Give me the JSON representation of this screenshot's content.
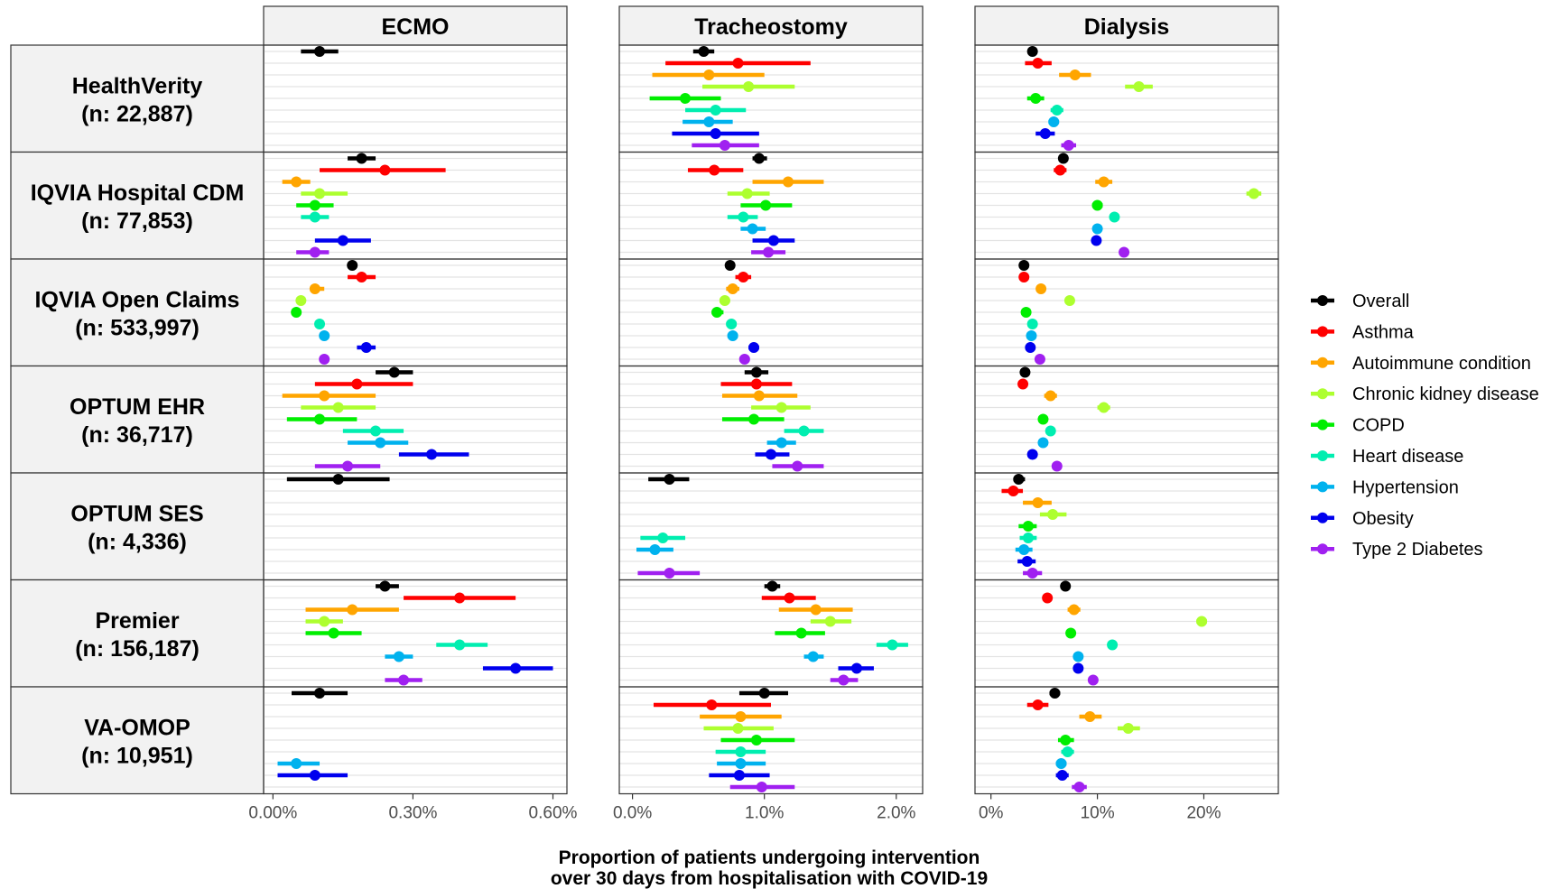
{
  "chart_data": {
    "type": "scatter",
    "subtype": "forest plot (point estimate with confidence interval)",
    "xlabel_lines": [
      "Proportion of patients undergoing intervention",
      "over 30 days from hospitalisation with COVID-19"
    ],
    "ylabel": "",
    "grid": true,
    "legend_position": "right",
    "databases": [
      {
        "name": "HealthVerity",
        "n_label": "(n: 22,887)"
      },
      {
        "name": "IQVIA Hospital CDM",
        "n_label": "(n: 77,853)"
      },
      {
        "name": "IQVIA Open Claims",
        "n_label": "(n: 533,997)"
      },
      {
        "name": "OPTUM EHR",
        "n_label": "(n: 36,717)"
      },
      {
        "name": "OPTUM SES",
        "n_label": "(n: 4,336)"
      },
      {
        "name": "Premier",
        "n_label": "(n: 156,187)"
      },
      {
        "name": "VA-OMOP",
        "n_label": "(n: 10,951)"
      }
    ],
    "series": [
      {
        "name": "Overall",
        "color": "#000000"
      },
      {
        "name": "Asthma",
        "color": "#ff0000"
      },
      {
        "name": "Autoimmune condition",
        "color": "#ffa500"
      },
      {
        "name": "Chronic kidney disease",
        "color": "#adff2f"
      },
      {
        "name": "COPD",
        "color": "#00ee00"
      },
      {
        "name": "Heart disease",
        "color": "#00eeb0"
      },
      {
        "name": "Hypertension",
        "color": "#00b2ee"
      },
      {
        "name": "Obesity",
        "color": "#0000ee"
      },
      {
        "name": "Type 2 Diabetes",
        "color": "#a020f0"
      }
    ],
    "panels": [
      {
        "title": "ECMO",
        "unit": "percent",
        "xlim": [
          -0.02,
          0.63
        ],
        "ticks": [
          0,
          0.3,
          0.6
        ],
        "tick_labels": [
          "0.00%",
          "0.30%",
          "0.60%"
        ],
        "values": [
          [
            [
              0.1,
              0.06,
              0.14
            ],
            null,
            null,
            null,
            null,
            null,
            null,
            null,
            null
          ],
          [
            [
              0.19,
              0.16,
              0.22
            ],
            [
              0.24,
              0.1,
              0.37
            ],
            [
              0.05,
              0.02,
              0.08
            ],
            [
              0.1,
              0.06,
              0.16
            ],
            [
              0.09,
              0.05,
              0.13
            ],
            [
              0.09,
              0.06,
              0.12
            ],
            null,
            [
              0.15,
              0.09,
              0.21
            ],
            [
              0.09,
              0.05,
              0.12
            ]
          ],
          [
            [
              0.17,
              0.16,
              0.18
            ],
            [
              0.19,
              0.16,
              0.22
            ],
            [
              0.09,
              0.08,
              0.11
            ],
            [
              0.06,
              0.05,
              0.07
            ],
            [
              0.05,
              0.04,
              0.06
            ],
            [
              0.1,
              0.09,
              0.11
            ],
            [
              0.11,
              0.1,
              0.12
            ],
            [
              0.2,
              0.18,
              0.22
            ],
            [
              0.11,
              0.1,
              0.12
            ]
          ],
          [
            [
              0.26,
              0.22,
              0.3
            ],
            [
              0.18,
              0.09,
              0.3
            ],
            [
              0.11,
              0.02,
              0.22
            ],
            [
              0.14,
              0.06,
              0.22
            ],
            [
              0.1,
              0.03,
              0.18
            ],
            [
              0.22,
              0.15,
              0.28
            ],
            [
              0.23,
              0.16,
              0.29
            ],
            [
              0.34,
              0.27,
              0.42
            ],
            [
              0.16,
              0.09,
              0.23
            ]
          ],
          [
            [
              0.14,
              0.03,
              0.25
            ],
            null,
            null,
            null,
            null,
            null,
            null,
            null,
            null
          ],
          [
            [
              0.24,
              0.22,
              0.27
            ],
            [
              0.4,
              0.28,
              0.52
            ],
            [
              0.17,
              0.07,
              0.27
            ],
            [
              0.11,
              0.07,
              0.15
            ],
            [
              0.13,
              0.07,
              0.19
            ],
            [
              0.4,
              0.35,
              0.46
            ],
            [
              0.27,
              0.24,
              0.3
            ],
            [
              0.52,
              0.45,
              0.6
            ],
            [
              0.28,
              0.24,
              0.32
            ]
          ],
          [
            [
              0.1,
              0.04,
              0.16
            ],
            null,
            null,
            null,
            null,
            null,
            [
              0.05,
              0.01,
              0.1
            ],
            [
              0.09,
              0.01,
              0.16
            ],
            null
          ]
        ]
      },
      {
        "title": "Tracheostomy",
        "unit": "percent",
        "xlim": [
          -0.1,
          2.2
        ],
        "ticks": [
          0,
          1,
          2
        ],
        "tick_labels": [
          "0.0%",
          "1.0%",
          "2.0%"
        ],
        "values": [
          [
            [
              0.54,
              0.46,
              0.62
            ],
            [
              0.8,
              0.25,
              1.35
            ],
            [
              0.58,
              0.15,
              1.0
            ],
            [
              0.88,
              0.53,
              1.23
            ],
            [
              0.4,
              0.13,
              0.67
            ],
            [
              0.63,
              0.4,
              0.86
            ],
            [
              0.58,
              0.38,
              0.76
            ],
            [
              0.63,
              0.3,
              0.96
            ],
            [
              0.7,
              0.45,
              0.96
            ]
          ],
          [
            [
              0.96,
              0.91,
              1.02
            ],
            [
              0.62,
              0.42,
              0.84
            ],
            [
              1.18,
              0.91,
              1.45
            ],
            [
              0.87,
              0.72,
              1.04
            ],
            [
              1.01,
              0.82,
              1.21
            ],
            [
              0.84,
              0.72,
              0.95
            ],
            [
              0.91,
              0.82,
              1.01
            ],
            [
              1.07,
              0.91,
              1.23
            ],
            [
              1.03,
              0.9,
              1.16
            ]
          ],
          [
            [
              0.74,
              0.71,
              0.77
            ],
            [
              0.84,
              0.78,
              0.9
            ],
            [
              0.76,
              0.71,
              0.81
            ],
            [
              0.7,
              0.66,
              0.74
            ],
            [
              0.64,
              0.6,
              0.69
            ],
            [
              0.75,
              0.71,
              0.79
            ],
            [
              0.76,
              0.72,
              0.8
            ],
            [
              0.92,
              0.88,
              0.96
            ],
            [
              0.85,
              0.81,
              0.89
            ]
          ],
          [
            [
              0.94,
              0.85,
              1.03
            ],
            [
              0.94,
              0.67,
              1.21
            ],
            [
              0.96,
              0.68,
              1.25
            ],
            [
              1.13,
              0.9,
              1.35
            ],
            [
              0.92,
              0.68,
              1.15
            ],
            [
              1.3,
              1.15,
              1.45
            ],
            [
              1.13,
              1.02,
              1.24
            ],
            [
              1.05,
              0.93,
              1.19
            ],
            [
              1.25,
              1.06,
              1.45
            ]
          ],
          [
            [
              0.28,
              0.12,
              0.43
            ],
            null,
            null,
            null,
            null,
            [
              0.23,
              0.06,
              0.4
            ],
            [
              0.17,
              0.03,
              0.31
            ],
            null,
            [
              0.28,
              0.04,
              0.51
            ]
          ],
          [
            [
              1.06,
              1.0,
              1.12
            ],
            [
              1.19,
              0.98,
              1.39
            ],
            [
              1.39,
              1.11,
              1.67
            ],
            [
              1.5,
              1.35,
              1.66
            ],
            [
              1.28,
              1.08,
              1.46
            ],
            [
              1.97,
              1.85,
              2.09
            ],
            [
              1.37,
              1.3,
              1.45
            ],
            [
              1.7,
              1.56,
              1.83
            ],
            [
              1.6,
              1.5,
              1.71
            ]
          ],
          [
            [
              1.0,
              0.81,
              1.18
            ],
            [
              0.6,
              0.16,
              1.05
            ],
            [
              0.82,
              0.51,
              1.13
            ],
            [
              0.8,
              0.54,
              1.07
            ],
            [
              0.94,
              0.67,
              1.23
            ],
            [
              0.82,
              0.63,
              1.01
            ],
            [
              0.82,
              0.64,
              1.01
            ],
            [
              0.81,
              0.58,
              1.04
            ],
            [
              0.98,
              0.74,
              1.23
            ]
          ]
        ]
      },
      {
        "title": "Dialysis",
        "unit": "percent",
        "xlim": [
          -1.5,
          27
        ],
        "ticks": [
          0,
          10,
          20
        ],
        "tick_labels": [
          "0%",
          "10%",
          "20%"
        ],
        "values": [
          [
            [
              3.9,
              3.6,
              4.2
            ],
            [
              4.4,
              3.2,
              5.7
            ],
            [
              7.9,
              6.4,
              9.4
            ],
            [
              13.9,
              12.6,
              15.2
            ],
            [
              4.2,
              3.4,
              5.0
            ],
            [
              6.2,
              5.6,
              6.8
            ],
            [
              5.9,
              5.4,
              6.4
            ],
            [
              5.1,
              4.2,
              6.0
            ],
            [
              7.3,
              6.6,
              8.0
            ]
          ],
          [
            [
              6.8,
              6.4,
              7.2
            ],
            [
              6.5,
              5.9,
              7.1
            ],
            [
              10.6,
              9.8,
              11.4
            ],
            [
              24.7,
              24.0,
              25.4
            ],
            [
              10.0,
              9.5,
              10.5
            ],
            [
              11.6,
              11.2,
              12.0
            ],
            [
              10.0,
              9.6,
              10.4
            ],
            [
              9.9,
              9.5,
              10.3
            ],
            [
              12.5,
              12.1,
              12.9
            ]
          ],
          [
            [
              3.1,
              2.9,
              3.3
            ],
            [
              3.1,
              2.9,
              3.3
            ],
            [
              4.7,
              4.5,
              4.9
            ],
            [
              7.4,
              7.2,
              7.6
            ],
            [
              3.3,
              3.1,
              3.5
            ],
            [
              3.9,
              3.7,
              4.1
            ],
            [
              3.8,
              3.6,
              4.0
            ],
            [
              3.7,
              3.5,
              3.9
            ],
            [
              4.6,
              4.4,
              4.8
            ]
          ],
          [
            [
              3.2,
              2.8,
              3.6
            ],
            [
              3.0,
              2.6,
              3.4
            ],
            [
              5.6,
              5.0,
              6.2
            ],
            [
              10.6,
              10.0,
              11.2
            ],
            [
              4.9,
              4.5,
              5.3
            ],
            [
              5.6,
              5.2,
              6.0
            ],
            [
              4.9,
              4.5,
              5.3
            ],
            [
              3.9,
              3.5,
              4.3
            ],
            [
              6.2,
              5.8,
              6.6
            ]
          ],
          [
            [
              2.6,
              2.1,
              3.2
            ],
            [
              2.1,
              1.0,
              3.0
            ],
            [
              4.4,
              3.0,
              5.7
            ],
            [
              5.8,
              4.6,
              7.1
            ],
            [
              3.5,
              2.6,
              4.3
            ],
            [
              3.5,
              2.7,
              4.3
            ],
            [
              3.1,
              2.3,
              3.9
            ],
            [
              3.4,
              2.5,
              4.2
            ],
            [
              3.9,
              3.0,
              4.8
            ]
          ],
          [
            [
              7.0,
              6.6,
              7.4
            ],
            [
              5.3,
              4.9,
              5.7
            ],
            [
              7.8,
              7.2,
              8.4
            ],
            [
              19.8,
              19.3,
              20.3
            ],
            [
              7.5,
              7.1,
              7.9
            ],
            [
              11.4,
              11.0,
              11.8
            ],
            [
              8.2,
              7.8,
              8.6
            ],
            [
              8.2,
              7.8,
              8.6
            ],
            [
              9.6,
              9.2,
              10.0
            ]
          ],
          [
            [
              6.0,
              5.5,
              6.5
            ],
            [
              4.4,
              3.4,
              5.4
            ],
            [
              9.3,
              8.3,
              10.4
            ],
            [
              12.9,
              11.9,
              14.0
            ],
            [
              7.0,
              6.3,
              7.8
            ],
            [
              7.2,
              6.6,
              7.8
            ],
            [
              6.6,
              6.1,
              7.1
            ],
            [
              6.7,
              6.1,
              7.3
            ],
            [
              8.3,
              7.6,
              9.0
            ]
          ]
        ]
      }
    ]
  }
}
